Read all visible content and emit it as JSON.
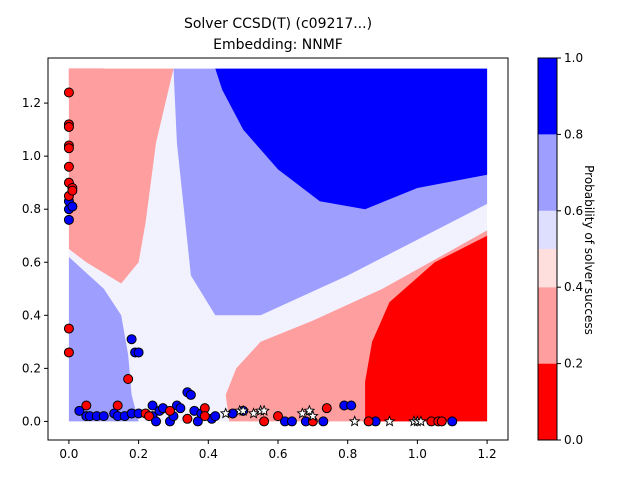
{
  "chart_data": {
    "type": "scatter",
    "title": "Solver CCSD(T) (c09217...)",
    "subtitle": "Embedding: NNMF",
    "xlabel": "",
    "ylabel": "",
    "xlim": [
      -0.06,
      1.26
    ],
    "ylim": [
      -0.07,
      1.37
    ],
    "xticks": [
      "0.0",
      "0.2",
      "0.4",
      "0.6",
      "0.8",
      "1.0",
      "1.2"
    ],
    "yticks": [
      "0.0",
      "0.2",
      "0.4",
      "0.6",
      "0.8",
      "1.0",
      "1.2"
    ],
    "xtick_values": [
      0.0,
      0.2,
      0.4,
      0.6,
      0.8,
      1.0,
      1.2
    ],
    "ytick_values": [
      0.0,
      0.2,
      0.4,
      0.6,
      0.8,
      1.0,
      1.2
    ],
    "colorbar": {
      "label": "Probability of solver success",
      "ticks": [
        "0.0",
        "0.2",
        "0.4",
        "0.6",
        "0.8",
        "1.0"
      ],
      "tick_values": [
        0.0,
        0.2,
        0.4,
        0.6,
        0.8,
        1.0
      ],
      "bands": [
        {
          "from": 0.0,
          "to": 0.2,
          "color": "#ff0000"
        },
        {
          "from": 0.2,
          "to": 0.4,
          "color": "#ff9e9e"
        },
        {
          "from": 0.4,
          "to": 0.5,
          "color": "#ffdede"
        },
        {
          "from": 0.5,
          "to": 0.6,
          "color": "#dedeff"
        },
        {
          "from": 0.6,
          "to": 0.8,
          "color": "#9e9eff"
        },
        {
          "from": 0.8,
          "to": 1.0,
          "color": "#0000ff"
        }
      ]
    },
    "background_regions": [
      {
        "name": "top-left red",
        "color": "#ff0000",
        "points": [
          [
            0.0,
            1.33
          ],
          [
            0.1,
            1.33
          ],
          [
            0.02,
            1.25
          ],
          [
            0.0,
            1.27
          ]
        ]
      },
      {
        "name": "upper-left pink",
        "color": "#ff9e9e",
        "points": [
          [
            0.02,
            1.33
          ],
          [
            0.3,
            1.33
          ],
          [
            0.25,
            1.05
          ],
          [
            0.22,
            0.75
          ],
          [
            0.2,
            0.6
          ],
          [
            0.15,
            0.52
          ],
          [
            0.05,
            0.6
          ],
          [
            0.0,
            0.65
          ],
          [
            0.0,
            1.33
          ]
        ]
      },
      {
        "name": "left blue",
        "color": "#9e9eff",
        "points": [
          [
            0.0,
            0.62
          ],
          [
            0.1,
            0.5
          ],
          [
            0.15,
            0.4
          ],
          [
            0.17,
            0.25
          ],
          [
            0.18,
            0.1
          ],
          [
            0.2,
            0.0
          ],
          [
            0.0,
            0.0
          ]
        ]
      },
      {
        "name": "top-middle blue",
        "color": "#9e9eff",
        "points": [
          [
            0.3,
            1.33
          ],
          [
            1.2,
            1.33
          ],
          [
            1.2,
            0.82
          ],
          [
            0.8,
            0.55
          ],
          [
            0.55,
            0.4
          ],
          [
            0.42,
            0.4
          ],
          [
            0.35,
            0.55
          ],
          [
            0.33,
            0.8
          ],
          [
            0.31,
            1.05
          ]
        ]
      },
      {
        "name": "top-right dark blue",
        "color": "#0000ff",
        "points": [
          [
            0.42,
            1.33
          ],
          [
            1.2,
            1.33
          ],
          [
            1.2,
            0.93
          ],
          [
            1.0,
            0.88
          ],
          [
            0.85,
            0.8
          ],
          [
            0.72,
            0.83
          ],
          [
            0.6,
            0.95
          ],
          [
            0.5,
            1.1
          ],
          [
            0.44,
            1.25
          ]
        ]
      },
      {
        "name": "bottom pink",
        "color": "#ff9e9e",
        "points": [
          [
            0.46,
            0.0
          ],
          [
            1.2,
            0.0
          ],
          [
            1.2,
            0.72
          ],
          [
            0.9,
            0.5
          ],
          [
            0.7,
            0.38
          ],
          [
            0.55,
            0.3
          ],
          [
            0.48,
            0.2
          ],
          [
            0.45,
            0.1
          ]
        ]
      },
      {
        "name": "bottom-right red",
        "color": "#ff0000",
        "points": [
          [
            0.85,
            0.0
          ],
          [
            1.2,
            0.0
          ],
          [
            1.2,
            0.7
          ],
          [
            1.05,
            0.6
          ],
          [
            0.92,
            0.45
          ],
          [
            0.87,
            0.3
          ],
          [
            0.85,
            0.15
          ]
        ]
      }
    ],
    "series": [
      {
        "marker": "circle",
        "color": "#0000ff",
        "points": [
          [
            0.0,
            0.76
          ],
          [
            0.0,
            0.8
          ],
          [
            0.0,
            0.83
          ],
          [
            0.01,
            0.81
          ],
          [
            0.03,
            0.04
          ],
          [
            0.05,
            0.02
          ],
          [
            0.06,
            0.02
          ],
          [
            0.08,
            0.02
          ],
          [
            0.1,
            0.02
          ],
          [
            0.13,
            0.03
          ],
          [
            0.14,
            0.02
          ],
          [
            0.16,
            0.02
          ],
          [
            0.18,
            0.03
          ],
          [
            0.18,
            0.31
          ],
          [
            0.19,
            0.26
          ],
          [
            0.2,
            0.03
          ],
          [
            0.2,
            0.26
          ],
          [
            0.24,
            0.02
          ],
          [
            0.24,
            0.06
          ],
          [
            0.25,
            0.0
          ],
          [
            0.26,
            0.04
          ],
          [
            0.27,
            0.05
          ],
          [
            0.29,
            0.0
          ],
          [
            0.3,
            0.02
          ],
          [
            0.31,
            0.06
          ],
          [
            0.32,
            0.05
          ],
          [
            0.34,
            0.11
          ],
          [
            0.35,
            0.1
          ],
          [
            0.36,
            0.04
          ],
          [
            0.37,
            0.0
          ],
          [
            0.38,
            0.03
          ],
          [
            0.41,
            0.01
          ],
          [
            0.42,
            0.02
          ],
          [
            0.47,
            0.03
          ],
          [
            0.5,
            0.04
          ],
          [
            0.62,
            0.0
          ],
          [
            0.64,
            0.0
          ],
          [
            0.68,
            0.0
          ],
          [
            0.73,
            0.0
          ],
          [
            0.79,
            0.06
          ],
          [
            0.81,
            0.06
          ],
          [
            0.88,
            0.0
          ],
          [
            1.1,
            0.0
          ]
        ]
      },
      {
        "marker": "circle",
        "color": "#ff0000",
        "points": [
          [
            0.0,
            1.24
          ],
          [
            0.0,
            1.12
          ],
          [
            0.0,
            1.11
          ],
          [
            0.0,
            1.04
          ],
          [
            0.0,
            1.03
          ],
          [
            0.0,
            0.96
          ],
          [
            0.0,
            0.9
          ],
          [
            0.0,
            0.85
          ],
          [
            0.01,
            0.88
          ],
          [
            0.01,
            0.87
          ],
          [
            0.0,
            0.35
          ],
          [
            0.0,
            0.26
          ],
          [
            0.05,
            0.06
          ],
          [
            0.14,
            0.06
          ],
          [
            0.17,
            0.16
          ],
          [
            0.22,
            0.03
          ],
          [
            0.23,
            0.02
          ],
          [
            0.29,
            0.04
          ],
          [
            0.34,
            0.01
          ],
          [
            0.39,
            0.05
          ],
          [
            0.39,
            0.02
          ],
          [
            0.56,
            0.0
          ],
          [
            0.6,
            0.02
          ],
          [
            0.7,
            0.0
          ],
          [
            0.74,
            0.05
          ],
          [
            0.86,
            0.0
          ],
          [
            1.04,
            0.0
          ],
          [
            1.06,
            0.0
          ],
          [
            1.07,
            0.0
          ]
        ]
      },
      {
        "marker": "star",
        "color": "#ffffff",
        "points": [
          [
            0.45,
            0.03
          ],
          [
            0.49,
            0.04
          ],
          [
            0.5,
            0.04
          ],
          [
            0.53,
            0.03
          ],
          [
            0.55,
            0.04
          ],
          [
            0.56,
            0.04
          ],
          [
            0.67,
            0.03
          ],
          [
            0.69,
            0.04
          ],
          [
            0.7,
            0.02
          ],
          [
            0.82,
            0.0
          ],
          [
            0.92,
            0.0
          ],
          [
            0.99,
            0.0
          ],
          [
            1.0,
            0.0
          ],
          [
            1.01,
            0.0
          ]
        ]
      }
    ]
  }
}
